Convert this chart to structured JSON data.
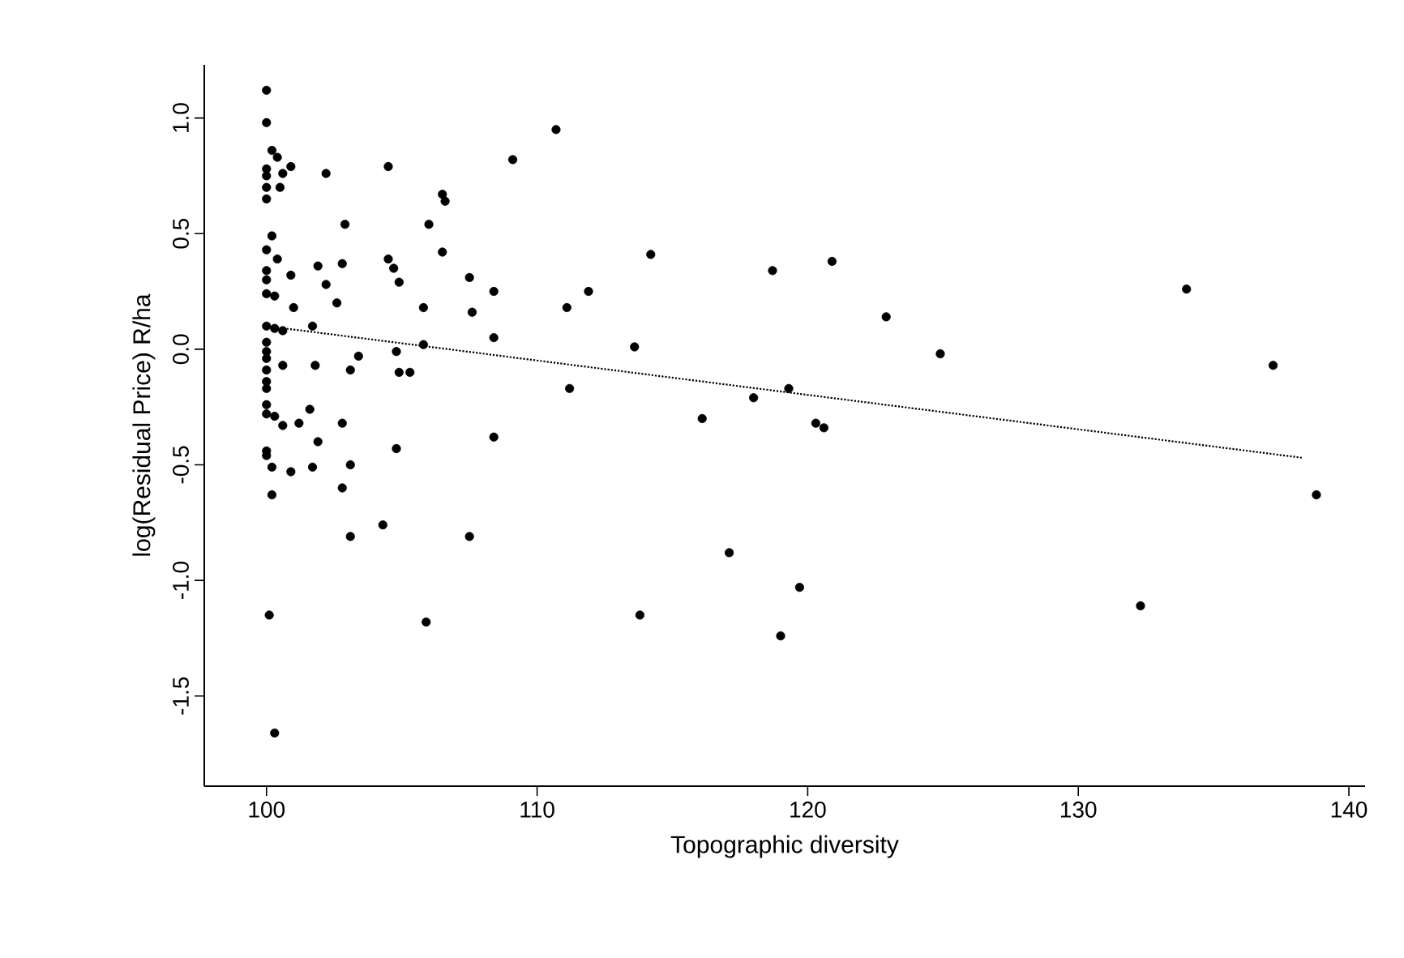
{
  "chart_data": {
    "type": "scatter",
    "xlabel": "Topographic diversity",
    "ylabel": "log(Residual Price) R/ha",
    "xlim": [
      97.7,
      140.6
    ],
    "xticks": [
      100,
      110,
      120,
      130,
      140
    ],
    "ylim": [
      -1.89,
      1.23
    ],
    "yticks": [
      {
        "value": -1.5,
        "label": "-1.5"
      },
      {
        "value": -1.0,
        "label": "-1.0"
      },
      {
        "value": -0.5,
        "label": "-0.5"
      },
      {
        "value": 0.0,
        "label": "0.0"
      },
      {
        "value": 0.5,
        "label": "0.5"
      },
      {
        "value": 1.0,
        "label": "1.0"
      }
    ],
    "grid": false,
    "series": [
      {
        "color": "#000000",
        "marker": "circle",
        "x": [
          100,
          100,
          100.2,
          100.4,
          100,
          100.9,
          100,
          100.6,
          102.2,
          104.5,
          109.1,
          110.7,
          100,
          100,
          100.5,
          106.5,
          106.6,
          102.9,
          106.0,
          100.2,
          100,
          100.4,
          106.5,
          101.9,
          102.8,
          104.5,
          104.7,
          100,
          100.9,
          100,
          104.9,
          102.2,
          107.5,
          108.4,
          100,
          100.3,
          102.6,
          101.0,
          105.8,
          107.6,
          100,
          100.3,
          100.6,
          101.7,
          108.4,
          100,
          100,
          103.4,
          104.8,
          105.8,
          100.6,
          100,
          101.8,
          103.1,
          104.9,
          105.3,
          100,
          100,
          100,
          100,
          100,
          100.3,
          100.6,
          101.2,
          101.6,
          102.8,
          100,
          100,
          100.2,
          100.9,
          101.7,
          101.9,
          103.1,
          102.8,
          104.8,
          108.4,
          100.2,
          104.3,
          103.1,
          107.5,
          100.1,
          105.9,
          100.3,
          114.2,
          111.9,
          111.1,
          113.6,
          111.2,
          118.7,
          120.9,
          122.9,
          124.9,
          116.1,
          118.0,
          119.3,
          120.3,
          120.6,
          117.1,
          119.7,
          119.0,
          113.8,
          134.0,
          137.2,
          138.8,
          132.3
        ],
        "values": [
          1.12,
          0.98,
          0.86,
          0.83,
          0.78,
          0.79,
          0.75,
          0.76,
          0.76,
          0.79,
          0.82,
          0.95,
          0.7,
          0.65,
          0.7,
          0.67,
          0.64,
          0.54,
          0.54,
          0.49,
          0.43,
          0.39,
          0.42,
          0.36,
          0.37,
          0.39,
          0.35,
          0.34,
          0.32,
          0.3,
          0.29,
          0.28,
          0.31,
          0.25,
          0.24,
          0.23,
          0.2,
          0.18,
          0.18,
          0.16,
          0.1,
          0.09,
          0.08,
          0.1,
          0.05,
          0.03,
          -0.01,
          -0.03,
          -0.01,
          0.02,
          -0.07,
          -0.04,
          -0.07,
          -0.09,
          -0.1,
          -0.1,
          -0.09,
          -0.14,
          -0.17,
          -0.24,
          -0.28,
          -0.29,
          -0.33,
          -0.32,
          -0.26,
          -0.32,
          -0.44,
          -0.46,
          -0.51,
          -0.53,
          -0.51,
          -0.4,
          -0.5,
          -0.6,
          -0.43,
          -0.38,
          -0.63,
          -0.76,
          -0.81,
          -0.81,
          -1.15,
          -1.18,
          -1.66,
          0.41,
          0.25,
          0.18,
          0.01,
          -0.17,
          0.34,
          0.38,
          0.14,
          -0.02,
          -0.3,
          -0.21,
          -0.17,
          -0.32,
          -0.34,
          -0.88,
          -1.03,
          -1.24,
          -1.15,
          0.26,
          -0.07,
          -0.63,
          -1.11
        ]
      },
      {
        "type": "line",
        "color": "#000000",
        "marker": "none",
        "line_style": "dotted",
        "x": [
          100,
          138.3
        ],
        "values": [
          0.1,
          -0.47
        ]
      }
    ]
  }
}
